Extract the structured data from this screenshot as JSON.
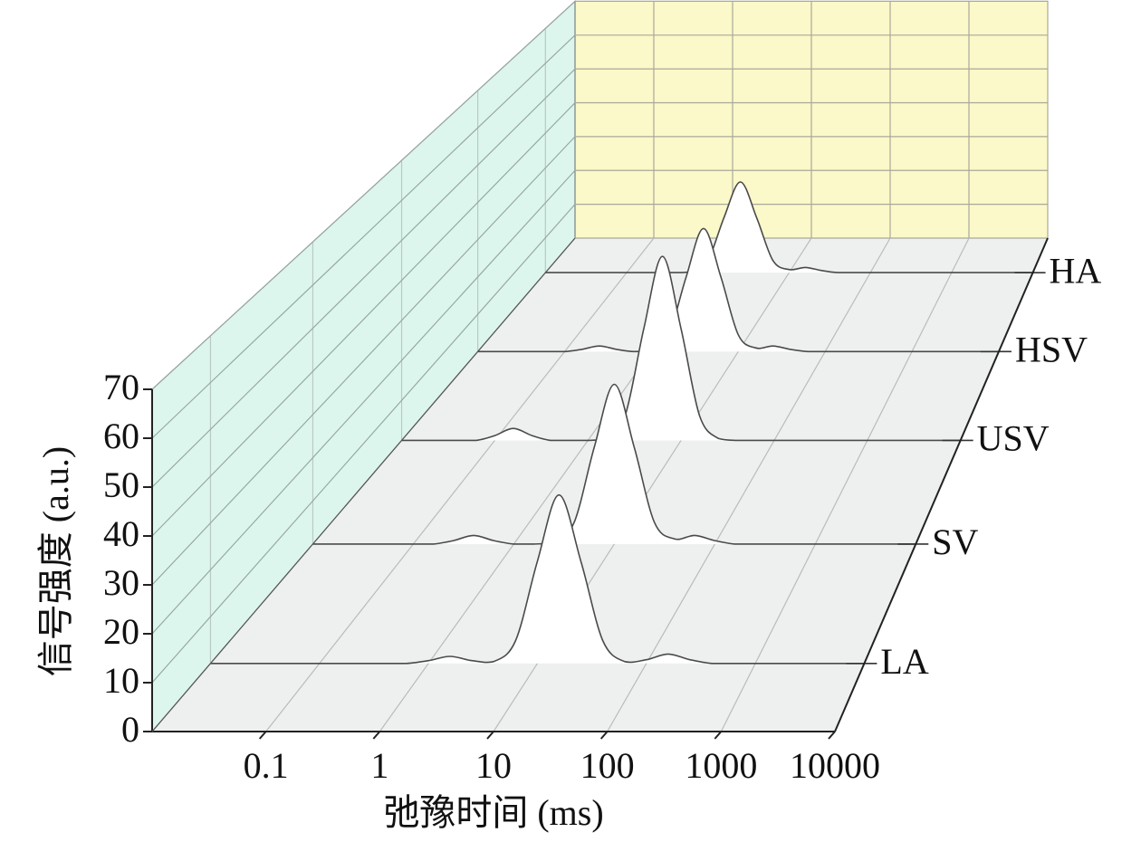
{
  "chart_data": {
    "type": "waterfall",
    "x_label": "弛豫时间 (ms)",
    "y_label": "信号强度 (a.u.)",
    "x_scale": "log",
    "xlim": [
      0.01,
      10000
    ],
    "xticks": [
      0.1,
      1,
      10,
      100,
      1000,
      10000
    ],
    "ylim": [
      0,
      70
    ],
    "yticks": [
      0,
      10,
      20,
      30,
      40,
      50,
      60,
      70
    ],
    "grid": true,
    "x": [
      0.01,
      0.0158,
      0.0251,
      0.0398,
      0.0631,
      0.1,
      0.158,
      0.251,
      0.398,
      0.631,
      1,
      1.58,
      2.51,
      3.98,
      6.31,
      10,
      15.8,
      25.1,
      39.8,
      63.1,
      100,
      158,
      251,
      398,
      631,
      1000,
      1585,
      2512,
      3981,
      6310,
      10000
    ],
    "series": [
      {
        "name": "LA",
        "color": "#ffffff",
        "values": [
          0,
          0,
          0,
          0,
          0,
          0,
          0,
          0,
          0,
          0,
          0.6,
          1.5,
          0.6,
          0.4,
          4.9,
          21.8,
          36,
          21.8,
          4.9,
          0.4,
          0.8,
          2,
          0.8,
          0,
          0,
          0,
          0,
          0,
          0,
          0,
          0
        ]
      },
      {
        "name": "SV",
        "color": "#ffffff",
        "values": [
          0,
          0,
          0,
          0,
          0,
          0,
          0,
          0.8,
          2,
          0.8,
          0,
          0,
          0.4,
          5,
          22.4,
          37,
          22.4,
          5,
          1.2,
          2,
          0.8,
          0,
          0,
          0,
          0,
          0,
          0,
          0,
          0,
          0,
          0
        ]
      },
      {
        "name": "USV",
        "color": "#ffffff",
        "values": [
          0,
          0,
          0,
          0,
          0,
          1.2,
          3,
          1.2,
          0,
          0,
          0,
          0.5,
          6.2,
          27.9,
          46,
          27.9,
          6.2,
          0.5,
          0,
          0,
          0,
          0,
          0,
          0,
          0,
          0,
          0,
          0,
          0,
          0,
          0
        ]
      },
      {
        "name": "HSV",
        "color": "#ffffff",
        "values": [
          0,
          0,
          0,
          0,
          0,
          0,
          0.6,
          1.5,
          0.6,
          0,
          0.4,
          4.5,
          20,
          33,
          20,
          4.5,
          1,
          1.5,
          0.6,
          0,
          0,
          0,
          0,
          0,
          0,
          0,
          0,
          0,
          0,
          0,
          0
        ]
      },
      {
        "name": "HA",
        "color": "#ffffff",
        "values": [
          0,
          0,
          0,
          0,
          0,
          0,
          0,
          0,
          0,
          0.3,
          3.5,
          15.8,
          26,
          15.8,
          3.5,
          0.9,
          1.5,
          0.6,
          0,
          0,
          0,
          0,
          0,
          0,
          0,
          0,
          0,
          0,
          0,
          0,
          0
        ]
      }
    ]
  }
}
